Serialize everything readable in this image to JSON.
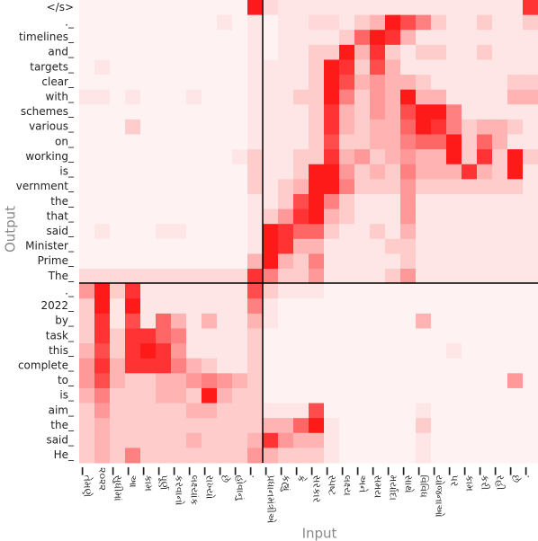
{
  "chart_data": {
    "type": "heatmap",
    "x_label": "Input",
    "y_label": "Output",
    "color": "#ff0000",
    "x_categories": [
      "▁તેમણે",
      "૨૦૨૨",
      "▁સુધીમાં",
      "▁આ",
      "▁કામ",
      "▁પૂર્ણ",
      "▁કરવાનો",
      "▁લક્ષ્યાંક",
      "▁રાખ્યો",
      "▁છે",
      "▁હોવાનું",
      "▁.",
      "▁પ્રધાનમંત્રીએ",
      "▁કહ્યું",
      "▁કે",
      "▁સરકાર",
      "▁સ્પષ્ટ",
      "▁લક્ષ્ય",
      "▁અને",
      "▁સમય",
      "▁મર્યાદા",
      "▁સાથે",
      "▁વિવિધ",
      "▁યોજનાઓ",
      "▁પર",
      "▁કામ",
      "▁કરી",
      "▁રહી",
      "▁છે",
      "▁."
    ],
    "y_categories": [
      "</s>",
      "._",
      "timelines_",
      "and_",
      "targets_",
      "clear_",
      "with_",
      "schemes_",
      "various_",
      "on_",
      "working_",
      "is_",
      "vernment_",
      "the_",
      "that_",
      "said_",
      "Minister_",
      "Prime_",
      "The_",
      "._",
      "2022_",
      "by_",
      "task_",
      "this_",
      "complete_",
      "to_",
      "is_",
      "aim_",
      "the_",
      "said_",
      "He_"
    ],
    "values": [
      [
        0.05,
        0.05,
        0.05,
        0.05,
        0.05,
        0.05,
        0.05,
        0.05,
        0.05,
        0.05,
        0.05,
        0.9,
        0.15,
        0.1,
        0.1,
        0.1,
        0.1,
        0.1,
        0.1,
        0.1,
        0.1,
        0.1,
        0.1,
        0.1,
        0.1,
        0.1,
        0.1,
        0.1,
        0.1,
        0.8
      ],
      [
        0.05,
        0.05,
        0.05,
        0.05,
        0.05,
        0.05,
        0.05,
        0.05,
        0.05,
        0.1,
        0.05,
        0.1,
        0.05,
        0.1,
        0.1,
        0.15,
        0.15,
        0.1,
        0.2,
        0.3,
        0.9,
        0.7,
        0.5,
        0.2,
        0.1,
        0.1,
        0.2,
        0.1,
        0.1,
        0.2
      ],
      [
        0.05,
        0.05,
        0.05,
        0.05,
        0.05,
        0.05,
        0.05,
        0.05,
        0.05,
        0.05,
        0.05,
        0.1,
        0.05,
        0.1,
        0.1,
        0.1,
        0.1,
        0.2,
        0.6,
        0.9,
        0.8,
        0.3,
        0.1,
        0.1,
        0.1,
        0.1,
        0.1,
        0.1,
        0.1,
        0.1
      ],
      [
        0.05,
        0.05,
        0.05,
        0.05,
        0.05,
        0.05,
        0.05,
        0.05,
        0.05,
        0.05,
        0.05,
        0.1,
        0.05,
        0.1,
        0.1,
        0.2,
        0.2,
        0.9,
        0.3,
        0.8,
        0.2,
        0.1,
        0.2,
        0.2,
        0.1,
        0.1,
        0.2,
        0.1,
        0.1,
        0.1
      ],
      [
        0.05,
        0.1,
        0.05,
        0.05,
        0.05,
        0.05,
        0.05,
        0.05,
        0.05,
        0.05,
        0.05,
        0.1,
        0.1,
        0.1,
        0.1,
        0.2,
        0.9,
        0.8,
        0.2,
        0.7,
        0.3,
        0.1,
        0.1,
        0.1,
        0.1,
        0.1,
        0.1,
        0.1,
        0.1,
        0.1
      ],
      [
        0.05,
        0.05,
        0.05,
        0.05,
        0.05,
        0.05,
        0.05,
        0.05,
        0.05,
        0.05,
        0.05,
        0.1,
        0.1,
        0.1,
        0.1,
        0.2,
        0.9,
        0.7,
        0.3,
        0.4,
        0.3,
        0.3,
        0.2,
        0.1,
        0.1,
        0.1,
        0.1,
        0.1,
        0.2,
        0.2
      ],
      [
        0.1,
        0.1,
        0.05,
        0.1,
        0.05,
        0.05,
        0.05,
        0.1,
        0.05,
        0.05,
        0.05,
        0.1,
        0.1,
        0.1,
        0.2,
        0.2,
        0.9,
        0.5,
        0.2,
        0.4,
        0.3,
        0.9,
        0.3,
        0.3,
        0.1,
        0.1,
        0.1,
        0.1,
        0.3,
        0.3
      ],
      [
        0.05,
        0.05,
        0.05,
        0.05,
        0.05,
        0.05,
        0.05,
        0.05,
        0.05,
        0.05,
        0.05,
        0.1,
        0.1,
        0.1,
        0.1,
        0.2,
        0.8,
        0.3,
        0.2,
        0.4,
        0.3,
        0.7,
        0.9,
        0.9,
        0.5,
        0.1,
        0.1,
        0.1,
        0.1,
        0.1
      ],
      [
        0.05,
        0.05,
        0.05,
        0.2,
        0.05,
        0.05,
        0.05,
        0.05,
        0.05,
        0.05,
        0.05,
        0.1,
        0.1,
        0.1,
        0.1,
        0.2,
        0.8,
        0.3,
        0.2,
        0.3,
        0.3,
        0.6,
        0.9,
        0.8,
        0.5,
        0.2,
        0.3,
        0.3,
        0.2,
        0.1
      ],
      [
        0.05,
        0.05,
        0.05,
        0.05,
        0.05,
        0.05,
        0.05,
        0.05,
        0.05,
        0.05,
        0.05,
        0.1,
        0.1,
        0.1,
        0.1,
        0.2,
        0.7,
        0.2,
        0.2,
        0.3,
        0.3,
        0.5,
        0.6,
        0.6,
        0.9,
        0.2,
        0.6,
        0.3,
        0.1,
        0.1
      ],
      [
        0.05,
        0.05,
        0.05,
        0.05,
        0.05,
        0.05,
        0.05,
        0.05,
        0.05,
        0.05,
        0.1,
        0.2,
        0.1,
        0.1,
        0.2,
        0.2,
        0.8,
        0.3,
        0.4,
        0.2,
        0.3,
        0.4,
        0.3,
        0.3,
        0.9,
        0.2,
        0.8,
        0.2,
        0.9,
        0.2
      ],
      [
        0.05,
        0.05,
        0.05,
        0.05,
        0.05,
        0.05,
        0.05,
        0.05,
        0.05,
        0.05,
        0.05,
        0.2,
        0.1,
        0.1,
        0.2,
        0.9,
        0.9,
        0.4,
        0.2,
        0.3,
        0.2,
        0.5,
        0.3,
        0.3,
        0.3,
        0.8,
        0.3,
        0.2,
        0.9,
        0.1
      ],
      [
        0.05,
        0.05,
        0.05,
        0.05,
        0.05,
        0.05,
        0.05,
        0.05,
        0.05,
        0.05,
        0.05,
        0.2,
        0.1,
        0.2,
        0.3,
        0.9,
        0.9,
        0.5,
        0.2,
        0.2,
        0.2,
        0.4,
        0.2,
        0.2,
        0.2,
        0.2,
        0.2,
        0.2,
        0.2,
        0.1
      ],
      [
        0.05,
        0.05,
        0.05,
        0.05,
        0.05,
        0.05,
        0.05,
        0.05,
        0.05,
        0.05,
        0.05,
        0.1,
        0.1,
        0.2,
        0.7,
        0.9,
        0.5,
        0.2,
        0.1,
        0.1,
        0.1,
        0.4,
        0.1,
        0.1,
        0.1,
        0.1,
        0.1,
        0.1,
        0.1,
        0.1
      ],
      [
        0.05,
        0.05,
        0.05,
        0.05,
        0.05,
        0.05,
        0.05,
        0.05,
        0.05,
        0.05,
        0.05,
        0.1,
        0.2,
        0.4,
        0.8,
        0.9,
        0.3,
        0.2,
        0.1,
        0.1,
        0.1,
        0.4,
        0.1,
        0.1,
        0.1,
        0.1,
        0.1,
        0.1,
        0.1,
        0.1
      ],
      [
        0.05,
        0.1,
        0.05,
        0.05,
        0.05,
        0.1,
        0.1,
        0.05,
        0.05,
        0.05,
        0.05,
        0.1,
        0.9,
        0.8,
        0.6,
        0.6,
        0.2,
        0.1,
        0.1,
        0.2,
        0.1,
        0.3,
        0.1,
        0.1,
        0.1,
        0.1,
        0.1,
        0.1,
        0.1,
        0.1
      ],
      [
        0.05,
        0.05,
        0.05,
        0.05,
        0.05,
        0.05,
        0.05,
        0.05,
        0.05,
        0.05,
        0.05,
        0.1,
        0.9,
        0.8,
        0.3,
        0.3,
        0.1,
        0.1,
        0.1,
        0.1,
        0.2,
        0.2,
        0.1,
        0.1,
        0.1,
        0.1,
        0.1,
        0.1,
        0.1,
        0.1
      ],
      [
        0.05,
        0.05,
        0.05,
        0.05,
        0.05,
        0.05,
        0.05,
        0.05,
        0.05,
        0.05,
        0.05,
        0.3,
        0.9,
        0.3,
        0.2,
        0.5,
        0.1,
        0.1,
        0.1,
        0.1,
        0.1,
        0.2,
        0.1,
        0.1,
        0.1,
        0.1,
        0.1,
        0.1,
        0.1,
        0.1
      ],
      [
        0.15,
        0.15,
        0.15,
        0.15,
        0.15,
        0.15,
        0.15,
        0.15,
        0.15,
        0.15,
        0.15,
        0.8,
        0.5,
        0.2,
        0.2,
        0.4,
        0.1,
        0.1,
        0.1,
        0.1,
        0.2,
        0.4,
        0.1,
        0.1,
        0.1,
        0.1,
        0.1,
        0.1,
        0.1,
        0.1
      ],
      [
        0.4,
        0.9,
        0.2,
        0.8,
        0.1,
        0.1,
        0.1,
        0.1,
        0.1,
        0.1,
        0.1,
        0.7,
        0.2,
        0.1,
        0.1,
        0.1,
        0.05,
        0.05,
        0.05,
        0.05,
        0.05,
        0.05,
        0.05,
        0.05,
        0.05,
        0.05,
        0.05,
        0.05,
        0.05,
        0.05
      ],
      [
        0.2,
        0.9,
        0.1,
        0.9,
        0.1,
        0.1,
        0.1,
        0.1,
        0.1,
        0.1,
        0.1,
        0.5,
        0.1,
        0.05,
        0.05,
        0.05,
        0.05,
        0.05,
        0.05,
        0.05,
        0.05,
        0.05,
        0.05,
        0.05,
        0.05,
        0.05,
        0.05,
        0.05,
        0.05,
        0.05
      ],
      [
        0.2,
        0.8,
        0.1,
        0.7,
        0.1,
        0.6,
        0.3,
        0.1,
        0.3,
        0.1,
        0.1,
        0.3,
        0.1,
        0.05,
        0.05,
        0.05,
        0.05,
        0.05,
        0.05,
        0.05,
        0.05,
        0.05,
        0.3,
        0.05,
        0.05,
        0.05,
        0.05,
        0.05,
        0.05,
        0.05
      ],
      [
        0.2,
        0.8,
        0.2,
        0.8,
        0.8,
        0.6,
        0.5,
        0.1,
        0.1,
        0.1,
        0.1,
        0.2,
        0.05,
        0.05,
        0.05,
        0.05,
        0.05,
        0.05,
        0.05,
        0.05,
        0.05,
        0.05,
        0.05,
        0.05,
        0.05,
        0.05,
        0.05,
        0.05,
        0.05,
        0.05
      ],
      [
        0.3,
        0.7,
        0.2,
        0.8,
        0.9,
        0.8,
        0.4,
        0.1,
        0.1,
        0.1,
        0.1,
        0.2,
        0.05,
        0.05,
        0.05,
        0.05,
        0.05,
        0.05,
        0.05,
        0.05,
        0.05,
        0.05,
        0.05,
        0.05,
        0.1,
        0.05,
        0.05,
        0.05,
        0.05,
        0.05
      ],
      [
        0.4,
        0.8,
        0.3,
        0.8,
        0.8,
        0.8,
        0.5,
        0.3,
        0.2,
        0.1,
        0.1,
        0.2,
        0.05,
        0.05,
        0.05,
        0.05,
        0.05,
        0.05,
        0.05,
        0.05,
        0.05,
        0.05,
        0.05,
        0.05,
        0.05,
        0.05,
        0.05,
        0.05,
        0.05,
        0.05
      ],
      [
        0.4,
        0.7,
        0.3,
        0.2,
        0.2,
        0.3,
        0.3,
        0.4,
        0.5,
        0.4,
        0.3,
        0.2,
        0.05,
        0.05,
        0.05,
        0.05,
        0.05,
        0.05,
        0.05,
        0.05,
        0.05,
        0.05,
        0.05,
        0.05,
        0.05,
        0.05,
        0.05,
        0.05,
        0.4,
        0.05
      ],
      [
        0.3,
        0.5,
        0.2,
        0.2,
        0.2,
        0.3,
        0.3,
        0.2,
        0.9,
        0.3,
        0.2,
        0.2,
        0.05,
        0.05,
        0.05,
        0.05,
        0.05,
        0.05,
        0.05,
        0.05,
        0.05,
        0.05,
        0.05,
        0.05,
        0.05,
        0.05,
        0.05,
        0.05,
        0.05,
        0.05
      ],
      [
        0.2,
        0.4,
        0.2,
        0.2,
        0.2,
        0.2,
        0.2,
        0.3,
        0.3,
        0.2,
        0.2,
        0.2,
        0.1,
        0.1,
        0.1,
        0.7,
        0.05,
        0.05,
        0.05,
        0.05,
        0.05,
        0.05,
        0.1,
        0.05,
        0.05,
        0.05,
        0.05,
        0.05,
        0.05,
        0.05
      ],
      [
        0.2,
        0.3,
        0.2,
        0.2,
        0.2,
        0.2,
        0.2,
        0.2,
        0.2,
        0.2,
        0.2,
        0.2,
        0.3,
        0.3,
        0.6,
        0.9,
        0.1,
        0.05,
        0.05,
        0.05,
        0.05,
        0.05,
        0.2,
        0.05,
        0.05,
        0.05,
        0.05,
        0.05,
        0.05,
        0.05
      ],
      [
        0.2,
        0.3,
        0.2,
        0.2,
        0.2,
        0.2,
        0.2,
        0.3,
        0.2,
        0.2,
        0.2,
        0.3,
        0.8,
        0.4,
        0.3,
        0.3,
        0.1,
        0.05,
        0.05,
        0.05,
        0.05,
        0.05,
        0.1,
        0.05,
        0.05,
        0.05,
        0.05,
        0.05,
        0.05,
        0.05
      ],
      [
        0.2,
        0.3,
        0.2,
        0.5,
        0.2,
        0.2,
        0.2,
        0.2,
        0.2,
        0.2,
        0.2,
        0.4,
        0.3,
        0.2,
        0.2,
        0.2,
        0.1,
        0.05,
        0.05,
        0.05,
        0.05,
        0.05,
        0.1,
        0.05,
        0.05,
        0.05,
        0.05,
        0.05,
        0.05,
        0.05
      ]
    ]
  }
}
